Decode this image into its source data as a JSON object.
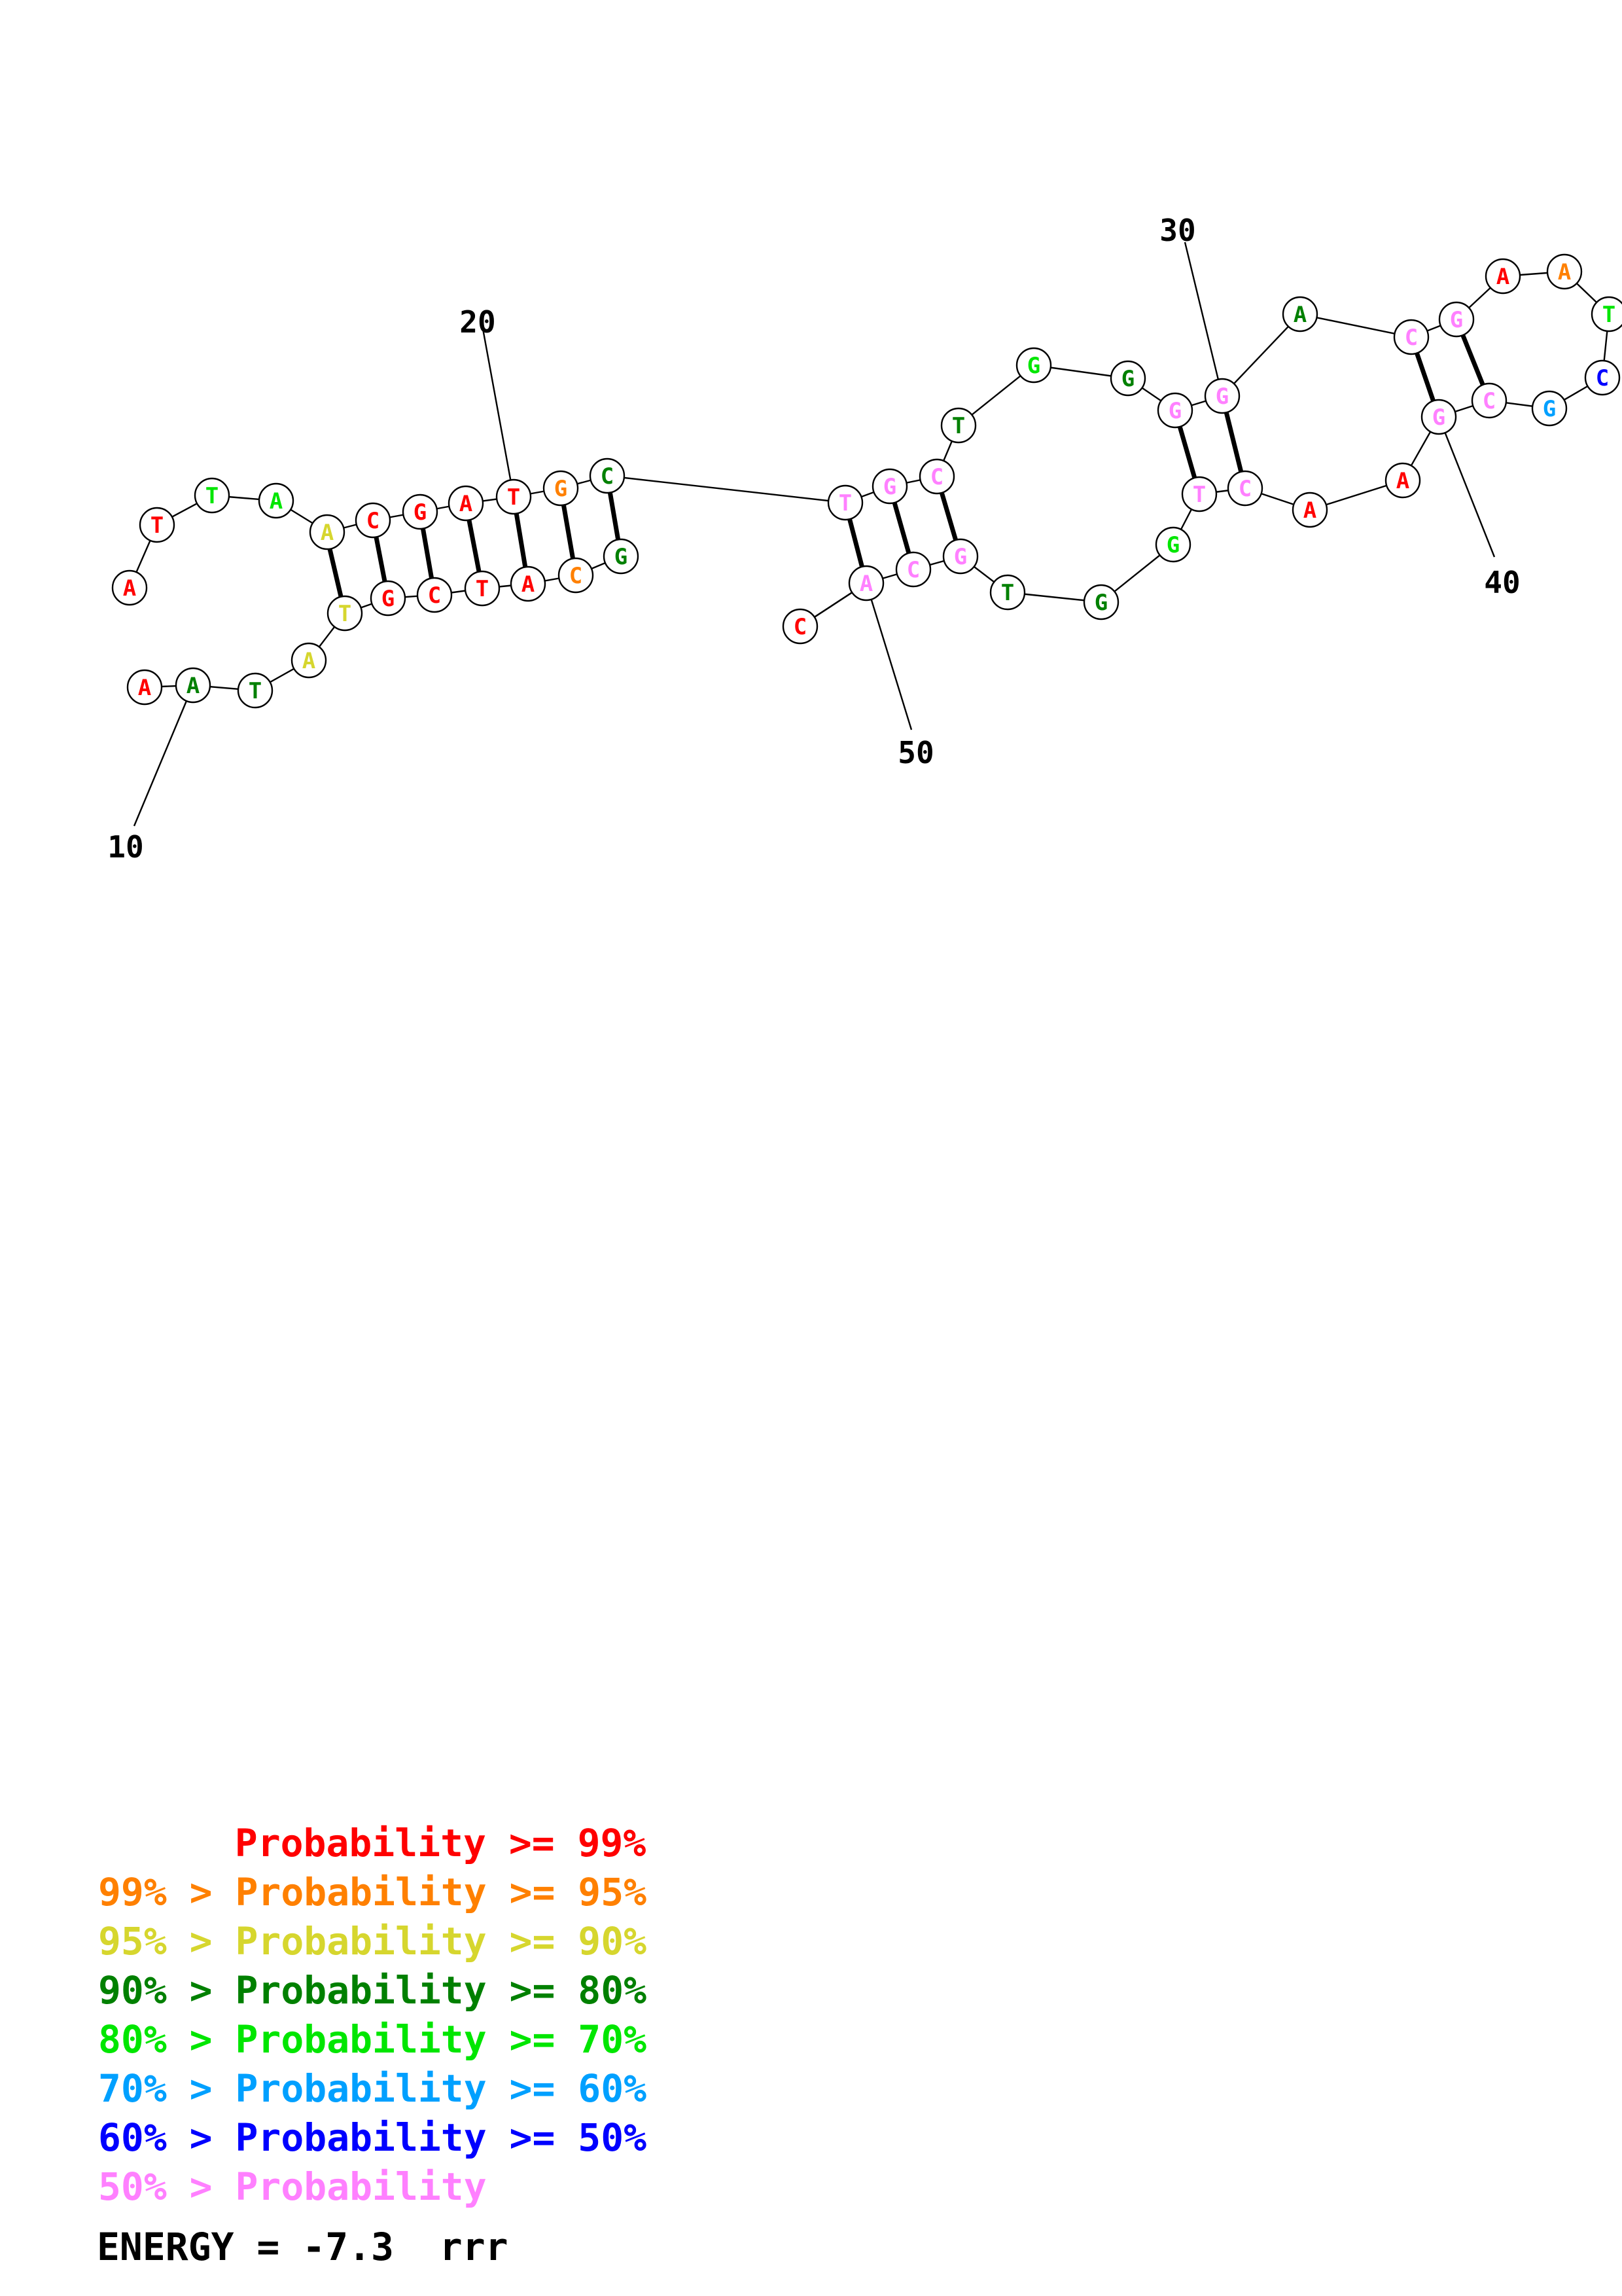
{
  "nucleotides": [
    {
      "base": "A",
      "cls": "red"
    },
    {
      "base": "T",
      "cls": "red"
    },
    {
      "base": "T",
      "cls": "lime"
    },
    {
      "base": "A",
      "cls": "lime"
    },
    {
      "base": "A",
      "cls": "yellow"
    },
    {
      "base": "C",
      "cls": "red"
    },
    {
      "base": "G",
      "cls": "red"
    },
    {
      "base": "A",
      "cls": "red"
    },
    {
      "base": "T",
      "cls": "red"
    },
    {
      "base": "G",
      "cls": "orange"
    },
    {
      "base": "C",
      "cls": "green"
    },
    {
      "base": "T",
      "cls": "pink"
    },
    {
      "base": "G",
      "cls": "pink"
    },
    {
      "base": "C",
      "cls": "pink"
    },
    {
      "base": "T",
      "cls": "green"
    },
    {
      "base": "G",
      "cls": "lime"
    },
    {
      "base": "G",
      "cls": "green"
    },
    {
      "base": "G",
      "cls": "pink"
    },
    {
      "base": "G",
      "cls": "pink"
    },
    {
      "base": "A",
      "cls": "green"
    },
    {
      "base": "C",
      "cls": "pink"
    },
    {
      "base": "G",
      "cls": "pink"
    },
    {
      "base": "A",
      "cls": "red"
    },
    {
      "base": "A",
      "cls": "orange"
    },
    {
      "base": "T",
      "cls": "lime"
    },
    {
      "base": "C",
      "cls": "blue"
    },
    {
      "base": "G",
      "cls": "sky"
    },
    {
      "base": "C",
      "cls": "pink"
    },
    {
      "base": "G",
      "cls": "pink"
    },
    {
      "base": "A",
      "cls": "red"
    },
    {
      "base": "A",
      "cls": "red"
    },
    {
      "base": "C",
      "cls": "pink"
    },
    {
      "base": "T",
      "cls": "pink"
    },
    {
      "base": "G",
      "cls": "lime"
    },
    {
      "base": "G",
      "cls": "green"
    },
    {
      "base": "T",
      "cls": "green"
    },
    {
      "base": "G",
      "cls": "pink"
    },
    {
      "base": "C",
      "cls": "pink"
    },
    {
      "base": "A",
      "cls": "pink"
    },
    {
      "base": "C",
      "cls": "red"
    },
    {
      "base": "G",
      "cls": "green"
    },
    {
      "base": "C",
      "cls": "orange"
    },
    {
      "base": "A",
      "cls": "red"
    },
    {
      "base": "T",
      "cls": "red"
    },
    {
      "base": "C",
      "cls": "red"
    },
    {
      "base": "G",
      "cls": "red"
    },
    {
      "base": "T",
      "cls": "yellow"
    },
    {
      "base": "A",
      "cls": "yellow"
    },
    {
      "base": "T",
      "cls": "green"
    },
    {
      "base": "A",
      "cls": "green"
    },
    {
      "base": "A",
      "cls": "red"
    }
  ],
  "colors": {
    "red": "#ff0000",
    "orange": "#ff8000",
    "yellow": "#d6d62e",
    "green": "#008000",
    "lime": "#00e600",
    "sky": "#00a0ff",
    "blue": "#0000ff",
    "pink": "#ff80ff"
  },
  "tick_labels": [
    "10",
    "20",
    "30",
    "40",
    "50"
  ],
  "legend": [
    {
      "prefix": "",
      "text": "Probability >= 99%",
      "cls": "red"
    },
    {
      "prefix": "99% > ",
      "text": "Probability >= 95%",
      "cls": "orange"
    },
    {
      "prefix": "95% > ",
      "text": "Probability >= 90%",
      "cls": "yellow"
    },
    {
      "prefix": "90% > ",
      "text": "Probability >= 80%",
      "cls": "green"
    },
    {
      "prefix": "80% > ",
      "text": "Probability >= 70%",
      "cls": "lime"
    },
    {
      "prefix": "70% > ",
      "text": "Probability >= 60%",
      "cls": "sky"
    },
    {
      "prefix": "60% > ",
      "text": "Probability >= 50%",
      "cls": "blue"
    },
    {
      "prefix": "50% > ",
      "text": "Probability",
      "cls": "pink"
    }
  ],
  "energy": "ENERGY = -7.3  rrr"
}
